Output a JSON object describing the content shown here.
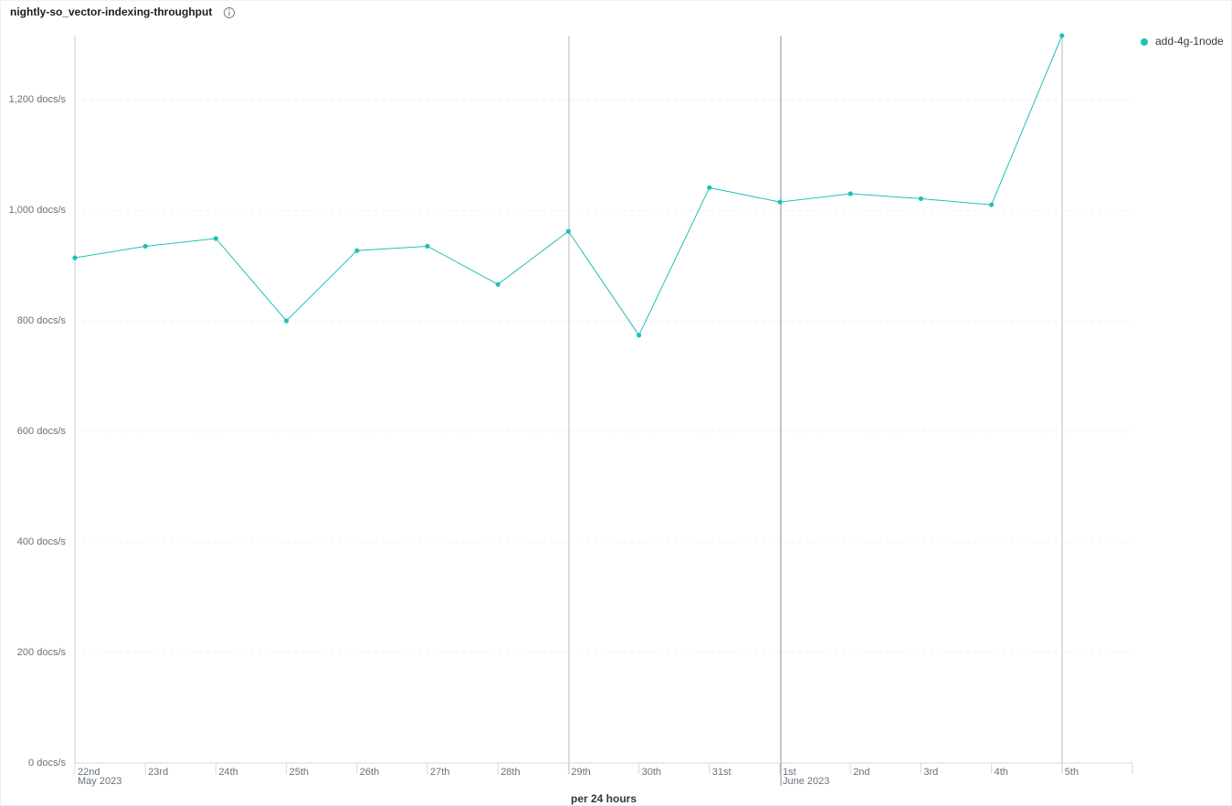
{
  "chart_data": {
    "type": "line",
    "title": "nightly-so_vector-indexing-throughput",
    "x_label": "per 24 hours",
    "categories": [
      "22nd",
      "23rd",
      "24th",
      "25th",
      "26th",
      "27th",
      "28th",
      "29th",
      "30th",
      "31st",
      "1st",
      "2nd",
      "3rd",
      "4th",
      "5th"
    ],
    "month_labels": [
      {
        "at": 0,
        "label": "May 2023"
      },
      {
        "at": 10,
        "label": "June 2023"
      }
    ],
    "series": [
      {
        "name": "add-4g-1node",
        "color": "#20c1b5",
        "values": [
          914,
          935,
          949,
          800,
          927,
          935,
          866,
          962,
          774,
          1041,
          1015,
          1030,
          1021,
          1010,
          1316
        ]
      }
    ],
    "ylim": [
      0,
      1316
    ],
    "yticks": [
      {
        "value": 0,
        "label": "0 docs/s"
      },
      {
        "value": 200,
        "label": "200 docs/s"
      },
      {
        "value": 400,
        "label": "400 docs/s"
      },
      {
        "value": 600,
        "label": "600 docs/s"
      },
      {
        "value": 800,
        "label": "800 docs/s"
      },
      {
        "value": 1000,
        "label": "1,000 docs/s"
      },
      {
        "value": 1200,
        "label": "1,200 docs/s"
      }
    ],
    "grid": true,
    "legend": "top-right"
  }
}
